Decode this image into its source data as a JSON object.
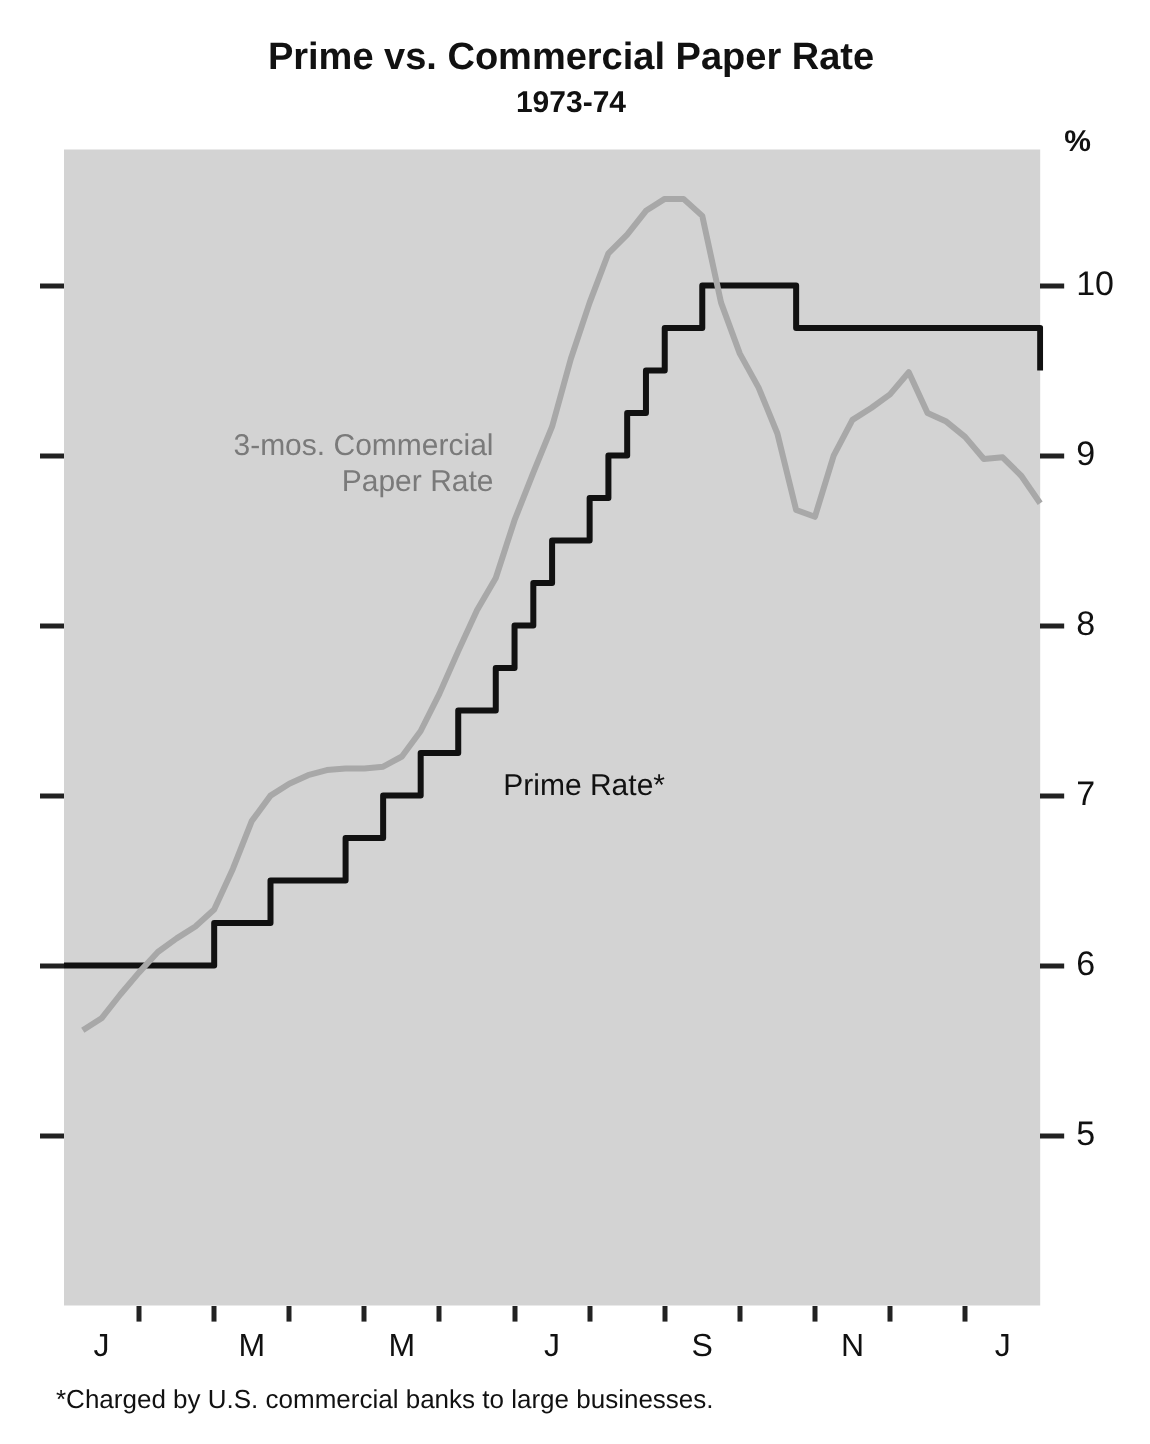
{
  "chart_data": {
    "type": "line",
    "title": "Prime vs. Commercial Paper Rate",
    "subtitle": "1973-74",
    "ylabel": "%",
    "categories": [
      null,
      null,
      "J",
      null,
      null,
      null,
      null,
      null,
      null,
      null,
      "M",
      null,
      null,
      null,
      null,
      null,
      null,
      null,
      "M",
      null,
      null,
      null,
      null,
      null,
      null,
      null,
      "J",
      null,
      null,
      null,
      null,
      null,
      null,
      null,
      "S",
      null,
      null,
      null,
      null,
      null,
      null,
      null,
      "N",
      null,
      null,
      null,
      null,
      null,
      null,
      null,
      "J",
      null,
      null
    ],
    "ylim": [
      4,
      10.8
    ],
    "yticks": [
      5,
      6,
      7,
      8,
      9,
      10
    ],
    "grid": false,
    "legend": false,
    "marker": "none",
    "series": [
      {
        "name": "3-mos. Commercial Paper Rate",
        "color": "#a8a8a8",
        "values": [
          null,
          5.62,
          5.69,
          5.83,
          5.96,
          6.08,
          6.16,
          6.23,
          6.33,
          6.57,
          6.85,
          7.0,
          7.07,
          7.12,
          7.15,
          7.16,
          7.16,
          7.17,
          7.23,
          7.38,
          7.6,
          7.85,
          8.09,
          8.28,
          8.62,
          8.9,
          9.17,
          9.57,
          9.9,
          10.19,
          10.3,
          10.44,
          10.51,
          10.51,
          10.41,
          9.9,
          9.6,
          9.4,
          9.13,
          8.68,
          8.64,
          9.0,
          9.21,
          9.28,
          9.36,
          9.49,
          9.25,
          9.2,
          9.11,
          8.98,
          8.99,
          8.88,
          8.72
        ]
      },
      {
        "name": "Prime Rate*",
        "type": "step",
        "color": "#111111",
        "values": [
          6.0,
          6.0,
          6.0,
          6.0,
          6.0,
          6.0,
          6.0,
          6.0,
          6.25,
          6.25,
          6.25,
          6.5,
          6.5,
          6.5,
          6.5,
          6.75,
          6.75,
          7.0,
          7.0,
          7.25,
          7.25,
          7.5,
          7.5,
          7.75,
          8.0,
          8.25,
          8.5,
          8.5,
          8.75,
          9.0,
          9.25,
          9.5,
          9.75,
          9.75,
          10.0,
          10.0,
          10.0,
          10.0,
          10.0,
          9.75,
          9.75,
          9.75,
          9.75,
          9.75,
          9.75,
          9.75,
          9.75,
          9.75,
          9.75,
          9.75,
          9.75,
          9.75,
          9.5
        ]
      }
    ],
    "annotations": [
      "*Charged by U.S. commercial banks to large businesses."
    ]
  }
}
